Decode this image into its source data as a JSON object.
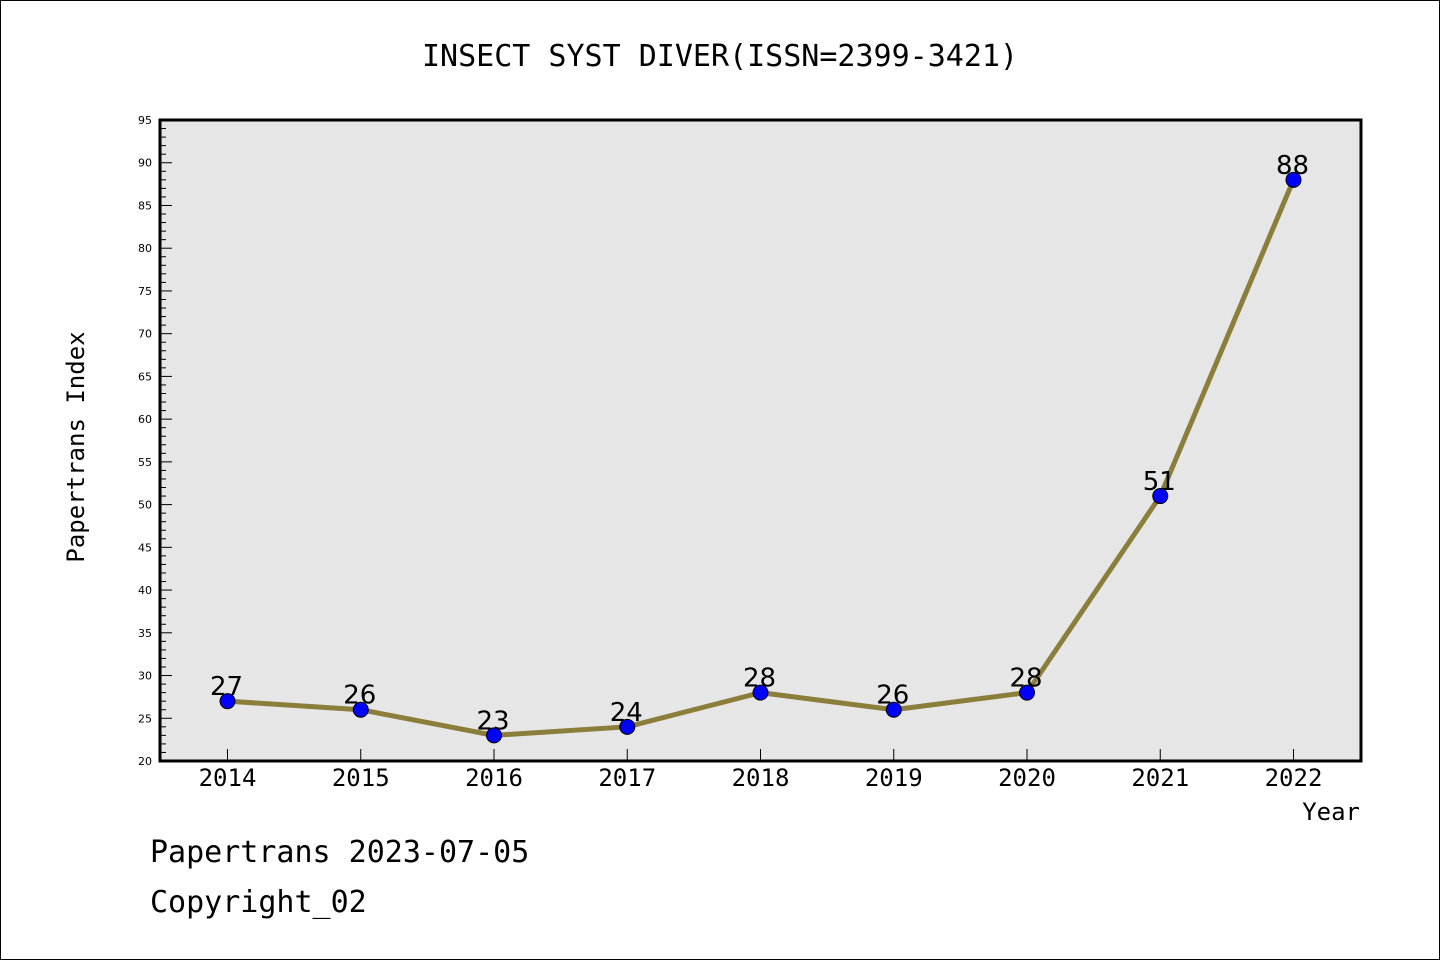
{
  "chart_data": {
    "type": "line",
    "title": "INSECT SYST DIVER(ISSN=2399-3421)",
    "xlabel": "Year",
    "ylabel": "Papertrans Index",
    "categories": [
      "2014",
      "2015",
      "2016",
      "2017",
      "2018",
      "2019",
      "2020",
      "2021",
      "2022"
    ],
    "series": [
      {
        "values": [
          27,
          26,
          23,
          24,
          28,
          26,
          28,
          51,
          88
        ]
      }
    ],
    "data_labels": [
      "27",
      "26",
      "23",
      "24",
      "28",
      "26",
      "28",
      "51",
      "88"
    ],
    "ylim": [
      20,
      95
    ],
    "y_ticks": [
      "20",
      "25",
      "30",
      "35",
      "40",
      "45",
      "50",
      "55",
      "60",
      "65",
      "70",
      "75",
      "80",
      "85",
      "90",
      "95"
    ],
    "grid": false,
    "legend": "none",
    "colors": {
      "line": "#8b7d3a",
      "marker": "#0000ff",
      "plot_background": "#e6e6e6"
    }
  },
  "footer": {
    "line1": "Papertrans 2023-07-05",
    "line2": "Copyright_02"
  }
}
